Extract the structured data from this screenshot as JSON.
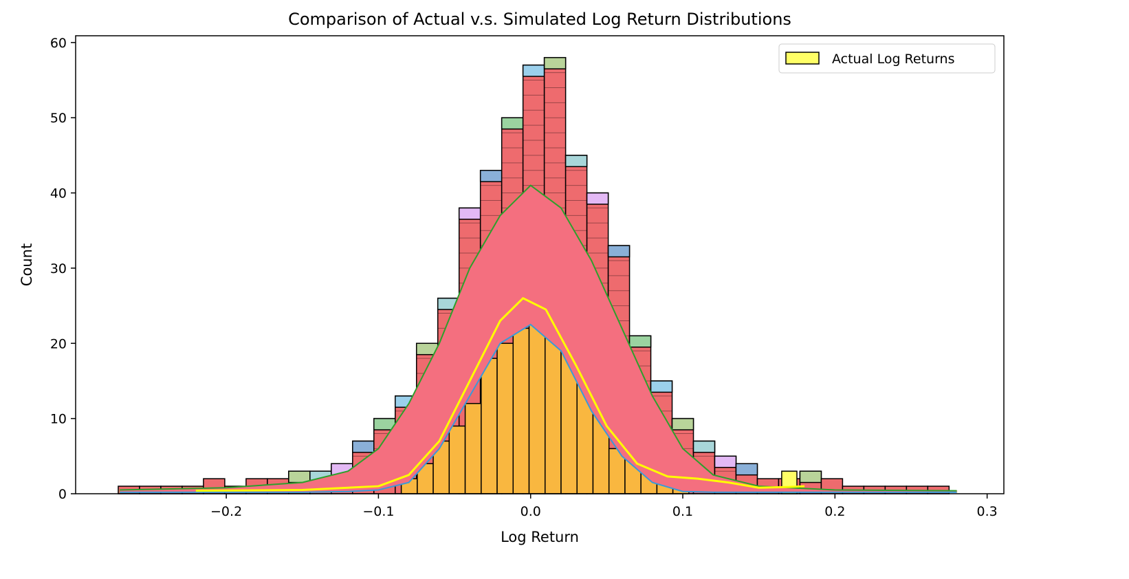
{
  "chart_data": {
    "type": "histogram",
    "title": "Comparison of Actual v.s. Simulated Log Return Distributions",
    "xlabel": "Log Return",
    "ylabel": "Count",
    "xlim": [
      -0.299,
      0.311
    ],
    "ylim": [
      0,
      60.9
    ],
    "xticks": [
      -0.2,
      -0.1,
      0.0,
      0.1,
      0.2,
      0.3
    ],
    "xtick_labels": [
      "−0.2",
      "−0.1",
      "0.0",
      "0.1",
      "0.2",
      "0.3"
    ],
    "yticks": [
      0,
      10,
      20,
      30,
      40,
      50,
      60
    ],
    "ytick_labels": [
      "0",
      "10",
      "20",
      "30",
      "40",
      "50",
      "60"
    ],
    "grid": false,
    "legend": {
      "placement": "top-right",
      "entries": [
        "Actual Log Returns"
      ]
    },
    "colors": {
      "simulated_bars": "#ee6b6e",
      "simulated_kde": "#f46f7f",
      "actual_bars": "#f9b740",
      "actual_kde": "#ffff00",
      "legend_patch": "#ffff66",
      "edge": "#000000"
    },
    "simulated_histogram_max": {
      "bin_start": -0.271,
      "bin_width": 0.014,
      "counts": [
        1,
        1,
        1,
        1,
        2,
        1,
        2,
        2,
        3,
        3,
        4,
        7,
        10,
        13,
        20,
        26,
        38,
        43,
        50,
        57,
        58,
        45,
        40,
        33,
        21,
        15,
        10,
        7,
        5,
        4,
        2,
        2,
        3,
        2,
        1,
        1,
        1,
        1,
        1
      ]
    },
    "simulated_top_colors": [
      "#9bd3a0",
      "#9bd0ec",
      "#b9d49a",
      "#a8d6d9",
      "#e3b9f5",
      "#8ab0d8"
    ],
    "actual_histogram": {
      "bin_start": -0.085,
      "bin_width": 0.0105,
      "counts": [
        2,
        4,
        7,
        9,
        12,
        18,
        20,
        22,
        23,
        22,
        21,
        15,
        13,
        6,
        5,
        3,
        2,
        1
      ],
      "extra_bar": {
        "x": 0.17,
        "count": 3
      }
    },
    "simulated_kde_band": {
      "x": [
        -0.27,
        -0.2,
        -0.15,
        -0.12,
        -0.1,
        -0.08,
        -0.06,
        -0.04,
        -0.02,
        0.0,
        0.02,
        0.04,
        0.06,
        0.08,
        0.1,
        0.12,
        0.15,
        0.2,
        0.28
      ],
      "upper": [
        0.5,
        0.8,
        1.5,
        3,
        6,
        12,
        20,
        30,
        37,
        41,
        38,
        31,
        22,
        13,
        6,
        2.5,
        1,
        0.5,
        0.4
      ],
      "lower": [
        0.2,
        0.2,
        0.2,
        0.3,
        0.5,
        1.5,
        6,
        13,
        20,
        22.5,
        19,
        11,
        5,
        1.5,
        0.3,
        0.2,
        0.2,
        0.2,
        0.2
      ]
    },
    "actual_kde": {
      "x": [
        -0.22,
        -0.15,
        -0.1,
        -0.08,
        -0.06,
        -0.04,
        -0.02,
        -0.005,
        0.01,
        0.03,
        0.05,
        0.07,
        0.09,
        0.11,
        0.13,
        0.15,
        0.17,
        0.18
      ],
      "y": [
        0.4,
        0.5,
        1,
        2.5,
        7,
        15,
        23,
        26,
        24.5,
        17,
        9,
        4,
        2.3,
        2,
        1.5,
        0.8,
        0.9,
        1
      ]
    }
  }
}
